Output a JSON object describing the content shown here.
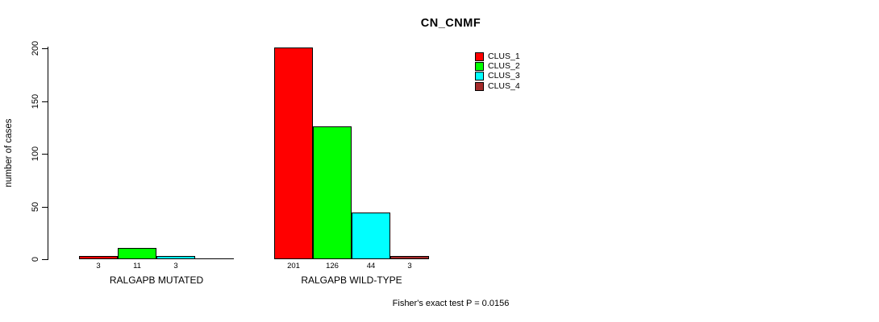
{
  "page": {
    "background": "#FFFFFF",
    "text_color": "#000000"
  },
  "chart_data": {
    "type": "bar",
    "title": "CN_CNMF",
    "ylabel": "number of cases",
    "xlabel": "",
    "ylim": [
      0,
      200
    ],
    "yticks": [
      0,
      50,
      100,
      150,
      200
    ],
    "grid": false,
    "legend_position": "top-right",
    "categories": [
      "RALGAPB MUTATED",
      "RALGAPB WILD-TYPE"
    ],
    "series": [
      {
        "name": "CLUS_1",
        "color": "#FF0000",
        "values": [
          3,
          201
        ]
      },
      {
        "name": "CLUS_2",
        "color": "#00FF00",
        "values": [
          11,
          126
        ]
      },
      {
        "name": "CLUS_3",
        "color": "#00FFFF",
        "values": [
          3,
          44
        ]
      },
      {
        "name": "CLUS_4",
        "color": "#A52A2A",
        "values": [
          0,
          3
        ]
      }
    ],
    "bar_value_labels": [
      [
        "3",
        "11",
        "3",
        ""
      ],
      [
        "201",
        "126",
        "44",
        "3"
      ]
    ],
    "annotation": "Fisher's exact test P = 0.0156"
  }
}
